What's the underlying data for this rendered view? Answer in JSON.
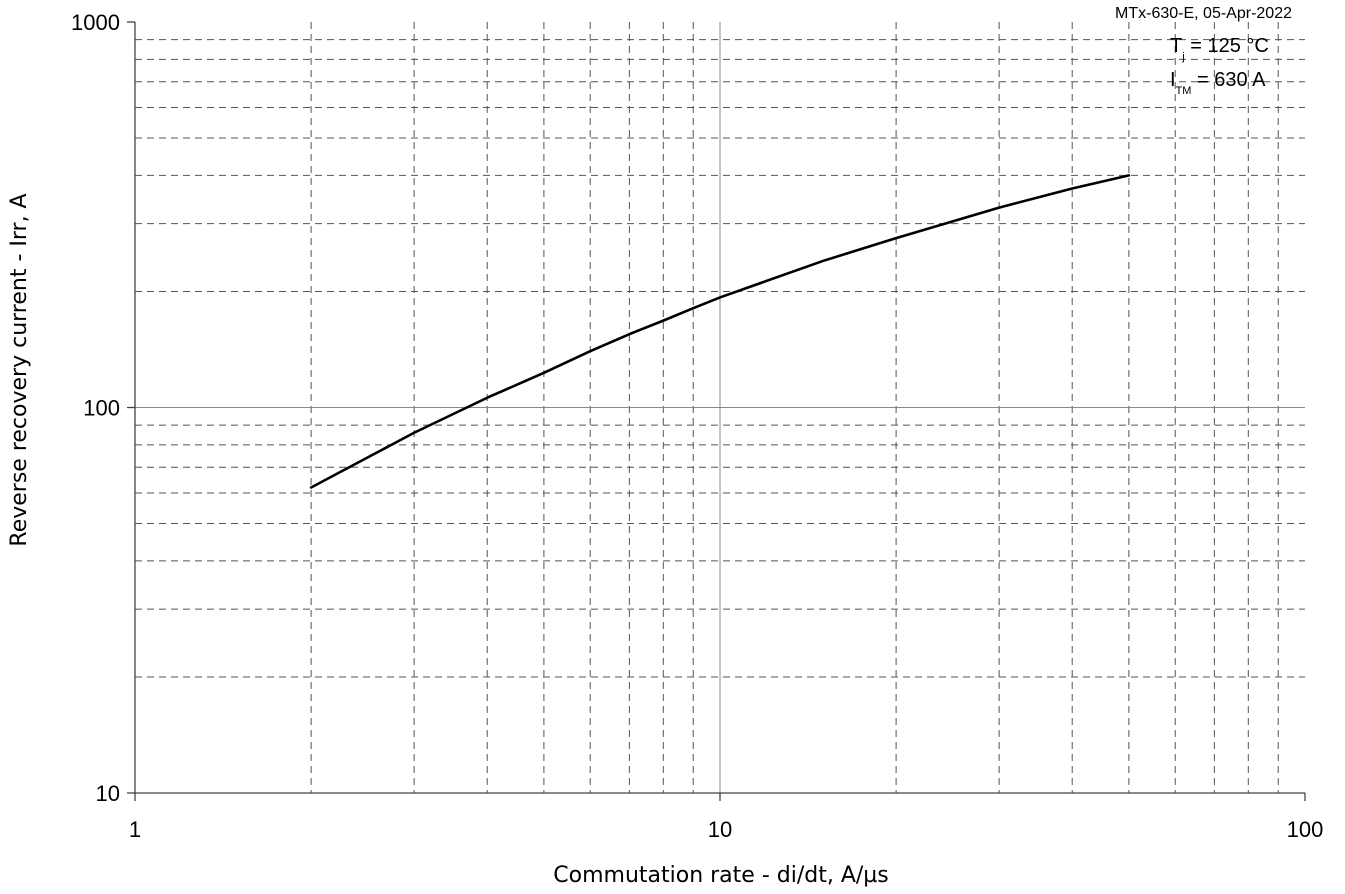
{
  "chart_data": {
    "type": "line",
    "source_note": "MTx-630-E, 05-Apr-2022",
    "conditions": {
      "tj_main": "T",
      "tj_sub": "j",
      "tj_value": " = 125 °C",
      "itm_main": "I",
      "itm_sub": "TM",
      "itm_value": " = 630 A"
    },
    "xlabel": "Commutation rate - di/dt, A/µs",
    "ylabel": "Reverse recovery current - Irr, A",
    "x_scale": "log",
    "y_scale": "log",
    "xlim": [
      1,
      100
    ],
    "ylim": [
      10,
      1000
    ],
    "x_ticks": [
      {
        "value": 1,
        "label": "1"
      },
      {
        "value": 10,
        "label": "10"
      },
      {
        "value": 100,
        "label": "100"
      }
    ],
    "y_ticks": [
      {
        "value": 10,
        "label": "10"
      },
      {
        "value": 100,
        "label": "100"
      },
      {
        "value": 1000,
        "label": "1000"
      }
    ],
    "grid": true,
    "series": [
      {
        "color": "#000000",
        "x": [
          2,
          3,
          4,
          5,
          6,
          7,
          8,
          9,
          10,
          15,
          20,
          30,
          40,
          50
        ],
        "y": [
          62,
          86,
          106,
          123,
          140,
          155,
          168,
          181,
          193,
          240,
          275,
          330,
          370,
          400
        ]
      }
    ]
  }
}
